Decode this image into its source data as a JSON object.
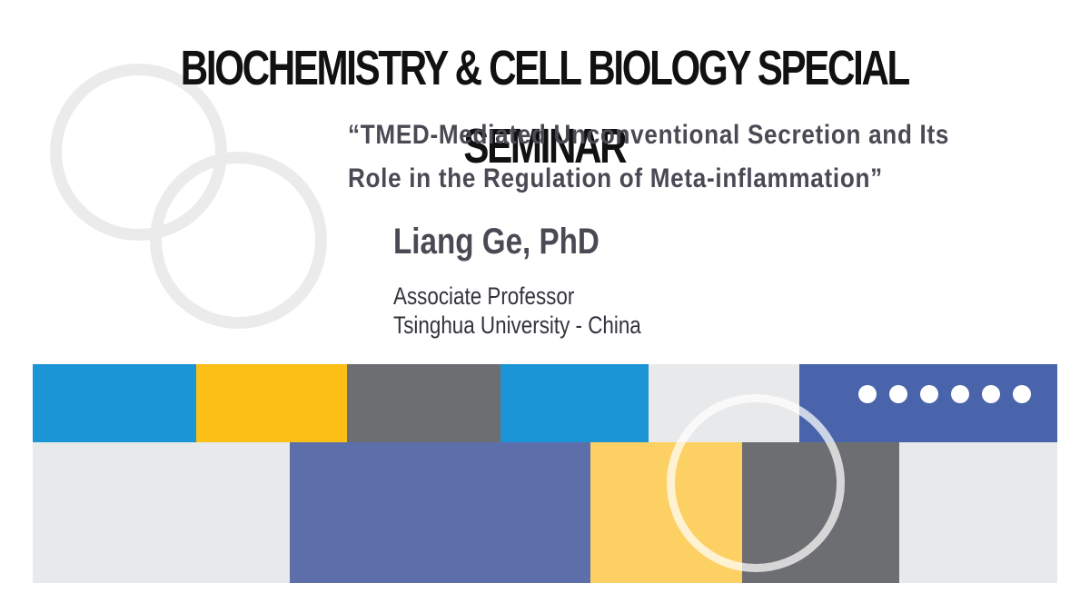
{
  "header": {
    "title": "BIOCHEMISTRY & CELL BIOLOGY SPECIAL SEMINAR"
  },
  "talk": {
    "line1": "“TMED-Mediated Unconventional Secretion and Its",
    "line2": "Role in the Regulation of Meta-inflammation”"
  },
  "speaker": {
    "name": "Liang Ge, PhD",
    "position": "Associate Professor",
    "institution": "Tsinghua University - China"
  },
  "colors": {
    "blue": "#1b95d6",
    "yellow": "#fbbf16",
    "gray": "#6d6e71",
    "light_gray": "#e8e9eb",
    "indigo": "#4a64ab",
    "periwinkle": "#5c6faa",
    "pale_yellow": "#fdd063",
    "text_dark": "#4a4a55"
  },
  "decoration": {
    "dot_count": 6
  }
}
